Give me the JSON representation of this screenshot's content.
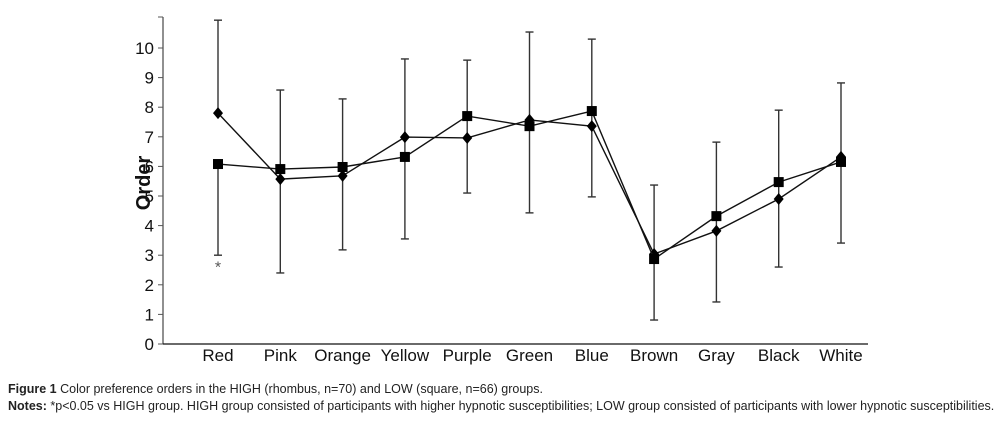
{
  "chart_data": {
    "type": "line",
    "title": "",
    "xlabel": "",
    "ylabel": "Order",
    "ylim": [
      0,
      11
    ],
    "yticks": [
      0,
      1,
      2,
      3,
      4,
      5,
      6,
      7,
      8,
      9,
      10
    ],
    "grid": false,
    "categories": [
      "Red",
      "Pink",
      "Orange",
      "Yellow",
      "Purple",
      "Green",
      "Blue",
      "Brown",
      "Gray",
      "Black",
      "White"
    ],
    "series": [
      {
        "name": "HIGH",
        "marker": "diamond",
        "values": [
          7.8,
          5.57,
          5.68,
          6.99,
          6.96,
          7.57,
          7.36,
          3.04,
          3.82,
          4.9,
          6.32
        ],
        "error_upper": [
          10.94,
          8.58,
          8.28,
          9.63,
          9.59,
          10.54,
          10.3,
          5.37,
          6.82,
          7.9,
          8.82
        ],
        "error_lower": [
          null,
          2.4,
          3.18,
          3.55,
          5.1,
          4.43,
          4.97,
          0.81,
          1.42,
          2.6,
          3.41
        ]
      },
      {
        "name": "LOW",
        "marker": "square",
        "values": [
          6.08,
          5.91,
          5.98,
          6.32,
          7.7,
          7.36,
          7.87,
          2.87,
          4.32,
          5.47,
          6.15
        ],
        "error_lower": [
          3.0,
          null,
          null,
          null,
          null,
          null,
          null,
          null,
          null,
          null,
          null
        ]
      }
    ],
    "annotations": [
      {
        "category": "Red",
        "text": "*",
        "y": 2.75
      }
    ],
    "legend": "none"
  },
  "caption": {
    "figure_label": "Figure 1",
    "figure_text": "Color preference orders in the HIGH (rhombus, n=70) and LOW (square, n=66) groups.",
    "notes_label": "Notes:",
    "notes_text": "*p<0.05 vs HIGH group. HIGH group consisted of participants with higher hypnotic susceptibilities; LOW group consisted of participants with lower hypnotic susceptibilities."
  }
}
